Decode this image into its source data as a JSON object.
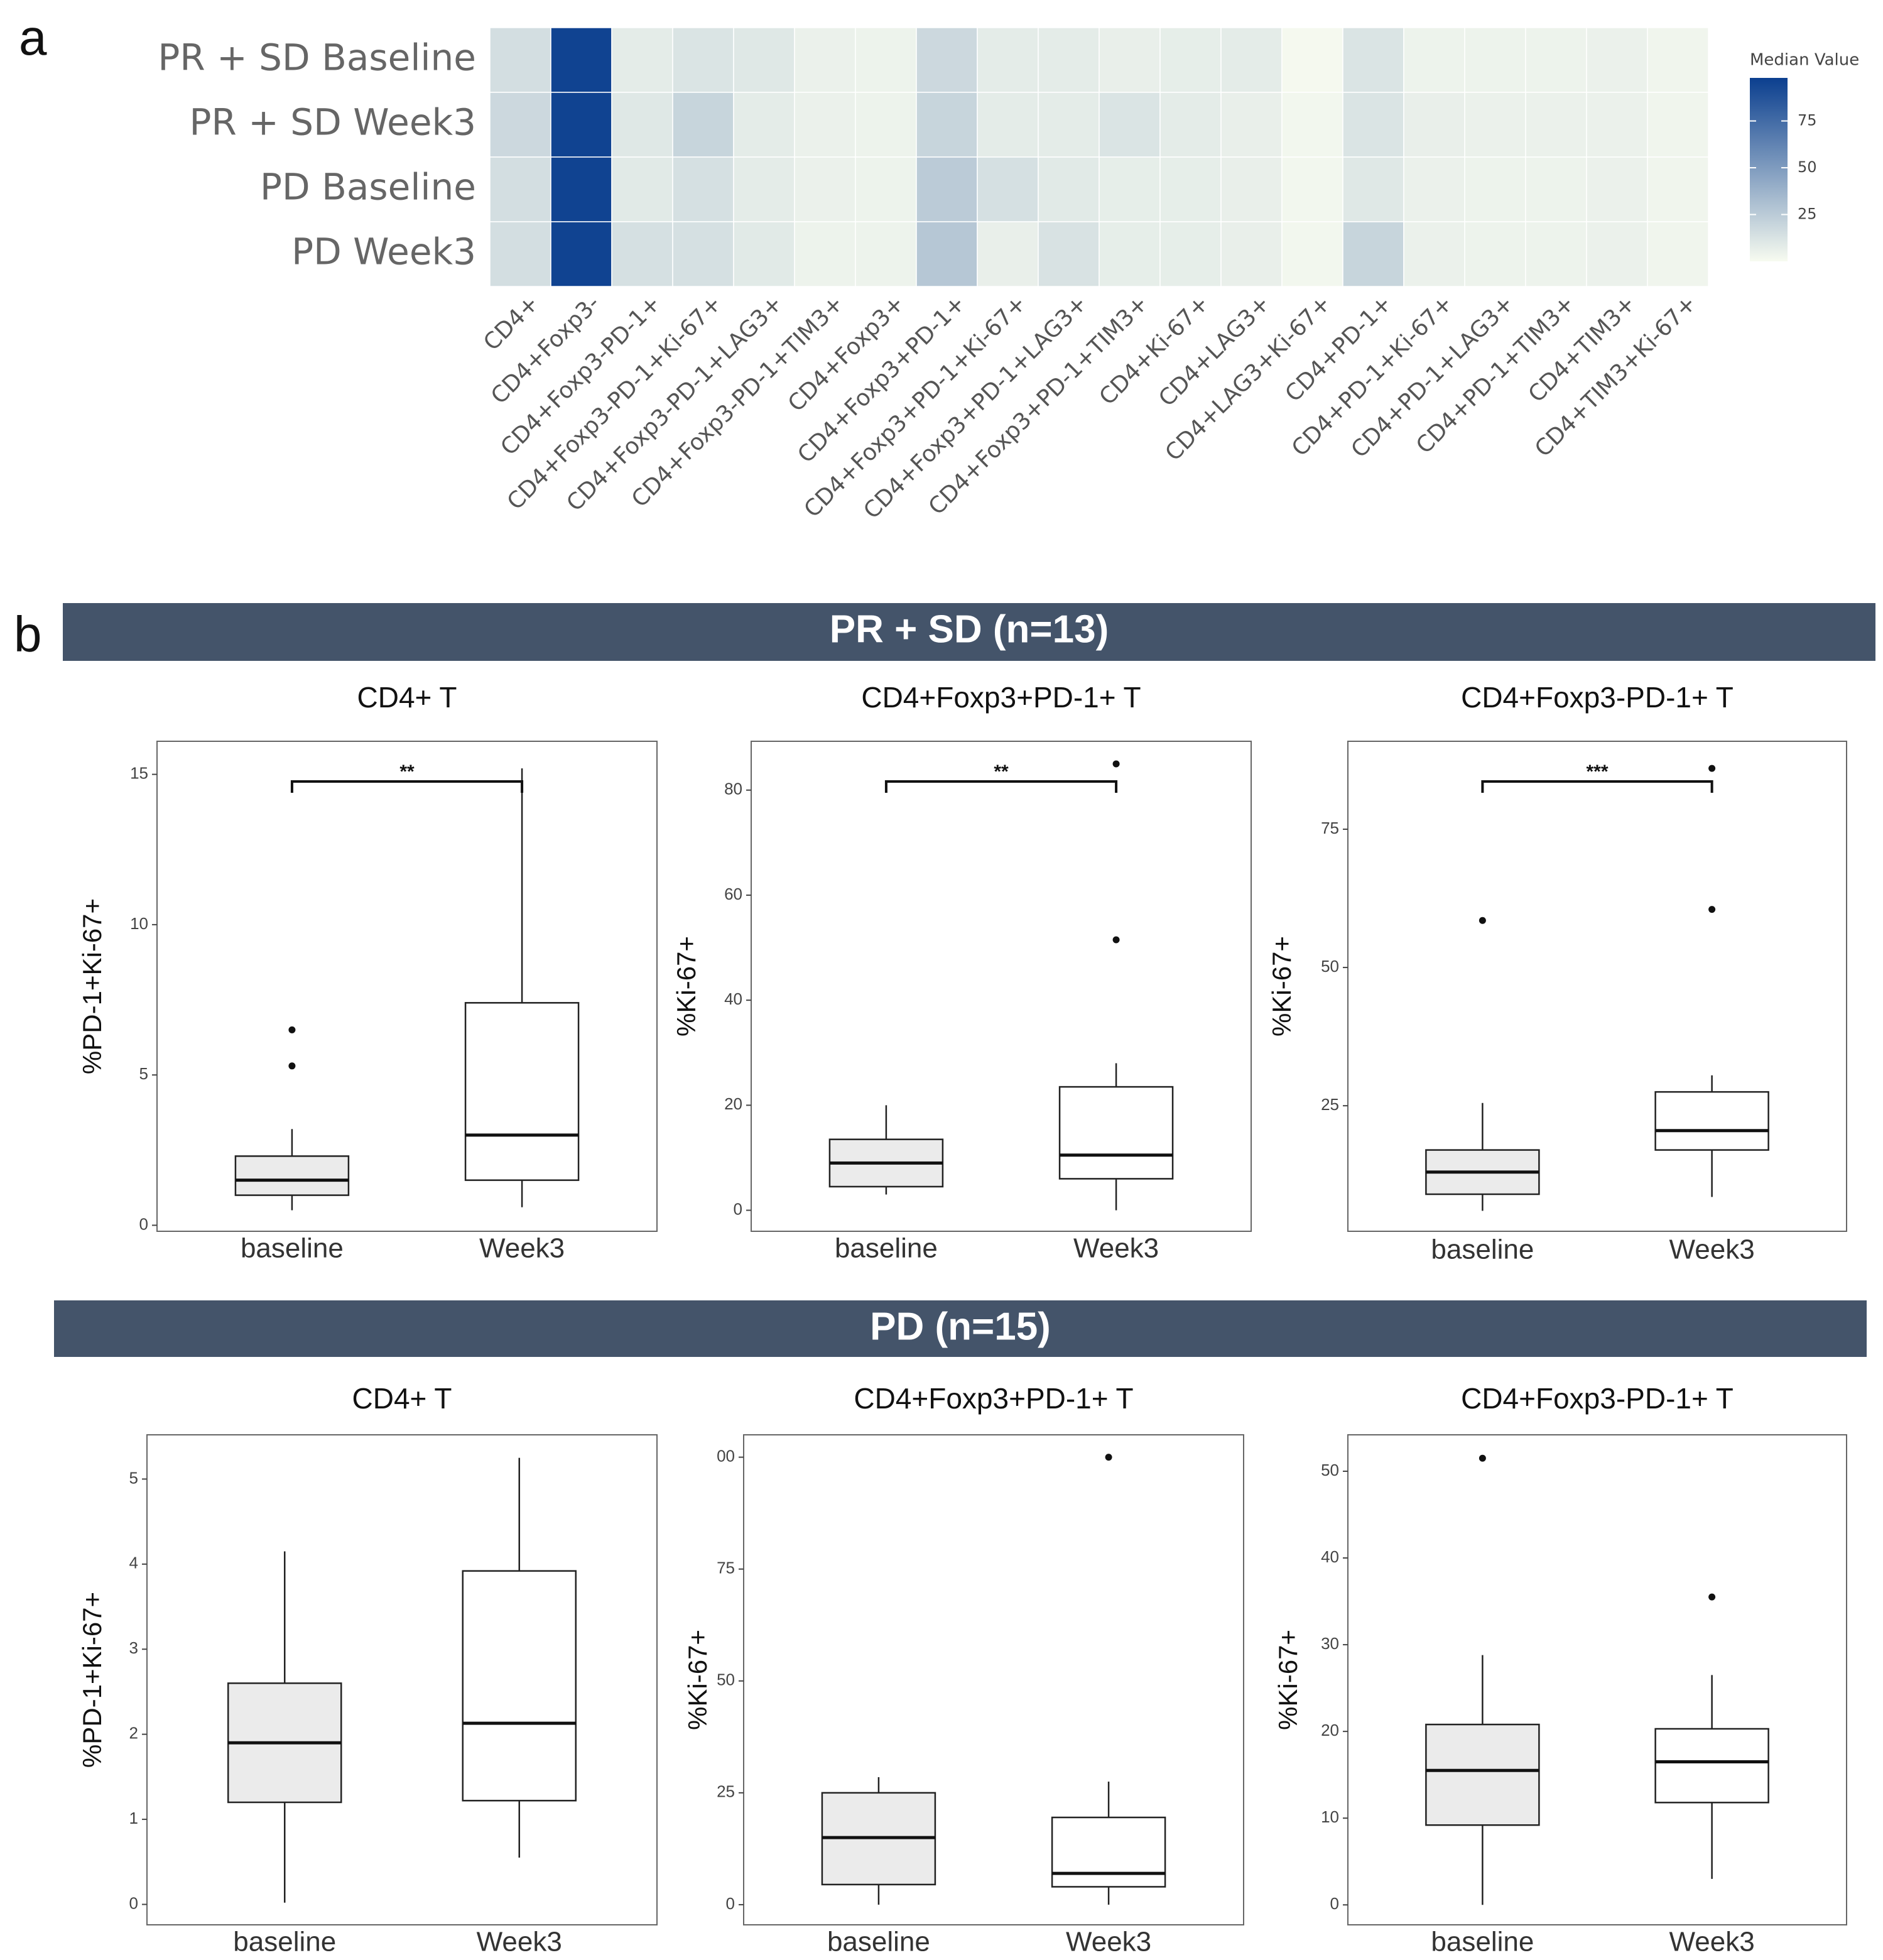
{
  "panel_labels": [
    "a",
    "b"
  ],
  "group_headers": [
    "PR + SD (n=13)",
    "PD (n=15)"
  ],
  "chart_data": [
    {
      "type": "heatmap",
      "rows": [
        "PR + SD Baseline",
        "PR + SD Week3",
        "PD Baseline",
        "PD Week3"
      ],
      "columns": [
        "CD4+",
        "CD4+Foxp3-",
        "CD4+Foxp3-PD-1+",
        "CD4+Foxp3-PD-1+Ki-67+",
        "CD4+Foxp3-PD-1+LAG3+",
        "CD4+Foxp3-PD-1+TIM3+",
        "CD4+Foxp3+",
        "CD4+Foxp3+PD-1+",
        "CD4+Foxp3+PD-1+Ki-67+",
        "CD4+Foxp3+PD-1+LAG3+",
        "CD4+Foxp3+PD-1+TIM3+",
        "CD4+Ki-67+",
        "CD4+LAG3+",
        "CD4+LAG3+Ki-67+",
        "CD4+PD-1+",
        "CD4+PD-1+Ki-67+",
        "CD4+PD-1+LAG3+",
        "CD4+PD-1+TIM3+",
        "CD4+TIM3+",
        "CD4+TIM3+Ki-67+"
      ],
      "values": [
        [
          15,
          96,
          8,
          12,
          10,
          5,
          4,
          18,
          8,
          8,
          6,
          7,
          8,
          1,
          12,
          4,
          4,
          4,
          5,
          3
        ],
        [
          18,
          96,
          10,
          20,
          8,
          5,
          4,
          20,
          8,
          8,
          12,
          8,
          6,
          2,
          12,
          6,
          5,
          5,
          5,
          3
        ],
        [
          15,
          96,
          9,
          14,
          8,
          5,
          4,
          25,
          14,
          9,
          7,
          7,
          6,
          2,
          10,
          5,
          4,
          4,
          5,
          3
        ],
        [
          15,
          96,
          14,
          14,
          9,
          4,
          4,
          27,
          6,
          13,
          7,
          7,
          6,
          2,
          20,
          5,
          4,
          4,
          5,
          3
        ]
      ],
      "colorbar_title": "Median Value",
      "clim": [
        0,
        98
      ],
      "cticks": [
        25,
        50,
        75
      ],
      "colors": [
        "#f7fbf0",
        "#0b3f8f"
      ]
    },
    {
      "type": "box",
      "title": "CD4+ T",
      "ylabel": "%PD-1+Ki-67+",
      "categories": [
        "baseline",
        "Week3"
      ],
      "fills": [
        "#ebebeb",
        "#ffffff"
      ],
      "ylim": [
        -0.2,
        16.1
      ],
      "yticks": [
        0,
        5,
        10,
        15
      ],
      "annotation": "**",
      "boxes": [
        {
          "whislo": 0.5,
          "q1": 1.0,
          "med": 1.5,
          "q3": 2.3,
          "whishi": 3.2,
          "fliers": [
            5.3,
            6.5
          ]
        },
        {
          "whislo": 0.6,
          "q1": 1.5,
          "med": 3.0,
          "q3": 7.4,
          "whishi": 15.2
        }
      ]
    },
    {
      "type": "box",
      "title": "CD4+Foxp3+PD-1+ T",
      "ylabel": "%Ki-67+",
      "categories": [
        "baseline",
        "Week3"
      ],
      "fills": [
        "#ebebeb",
        "#ffffff"
      ],
      "ylim": [
        -4,
        89.3
      ],
      "yticks": [
        0,
        20,
        40,
        60,
        80
      ],
      "annotation": "**",
      "boxes": [
        {
          "whislo": 3,
          "q1": 4.5,
          "med": 9,
          "q3": 13.5,
          "whishi": 20
        },
        {
          "whislo": 0,
          "q1": 6,
          "med": 10.5,
          "q3": 23.5,
          "whishi": 28,
          "fliers": [
            51.5,
            85
          ]
        }
      ]
    },
    {
      "type": "box",
      "title": "CD4+Foxp3-PD-1+ T",
      "ylabel": "%Ki-67+",
      "categories": [
        "baseline",
        "Week3"
      ],
      "fills": [
        "#ebebeb",
        "#ffffff"
      ],
      "ylim": [
        2.3,
        90.9
      ],
      "yticks": [
        25,
        50,
        75
      ],
      "annotation": "***",
      "boxes": [
        {
          "whislo": 6,
          "q1": 9,
          "med": 13,
          "q3": 17,
          "whishi": 25.5,
          "fliers": [
            58.5
          ]
        },
        {
          "whislo": 8.5,
          "q1": 17,
          "med": 20.5,
          "q3": 27.5,
          "whishi": 30.5,
          "fliers": [
            60.5,
            86
          ]
        }
      ]
    },
    {
      "type": "box",
      "title": "CD4+ T",
      "ylabel": "%PD-1+Ki-67+",
      "categories": [
        "baseline",
        "Week3"
      ],
      "fills": [
        "#ebebeb",
        "#ffffff"
      ],
      "ylim": [
        -0.24,
        5.52
      ],
      "yticks": [
        0,
        1,
        2,
        3,
        4,
        5
      ],
      "boxes": [
        {
          "whislo": 0.02,
          "q1": 1.2,
          "med": 1.9,
          "q3": 2.6,
          "whishi": 4.15
        },
        {
          "whislo": 0.55,
          "q1": 1.22,
          "med": 2.13,
          "q3": 3.92,
          "whishi": 5.25
        }
      ]
    },
    {
      "type": "box",
      "title": "CD4+Foxp3+PD-1+ T",
      "ylabel": "%Ki-67+",
      "categories": [
        "baseline",
        "Week3"
      ],
      "fills": [
        "#ebebeb",
        "#ffffff"
      ],
      "ylim": [
        -4.5,
        105
      ],
      "yticks": [
        0,
        25,
        50,
        75,
        {
          "value": 100,
          "label": "00"
        }
      ],
      "boxes": [
        {
          "whislo": 0,
          "q1": 4.5,
          "med": 15,
          "q3": 25,
          "whishi": 28.5
        },
        {
          "whislo": 0,
          "q1": 4,
          "med": 7,
          "q3": 19.5,
          "whishi": 27.5,
          "fliers": [
            100
          ]
        }
      ]
    },
    {
      "type": "box",
      "title": "CD4+Foxp3-PD-1+ T",
      "ylabel": "%Ki-67+",
      "categories": [
        "baseline",
        "Week3"
      ],
      "fills": [
        "#ebebeb",
        "#ffffff"
      ],
      "ylim": [
        -2.3,
        54.2
      ],
      "yticks": [
        0,
        10,
        20,
        30,
        40,
        50
      ],
      "boxes": [
        {
          "whislo": 0,
          "q1": 9.2,
          "med": 15.5,
          "q3": 20.8,
          "whishi": 28.8,
          "fliers": [
            51.5
          ]
        },
        {
          "whislo": 3,
          "q1": 11.8,
          "med": 16.5,
          "q3": 20.3,
          "whishi": 26.5,
          "fliers": [
            35.5
          ]
        }
      ]
    }
  ]
}
